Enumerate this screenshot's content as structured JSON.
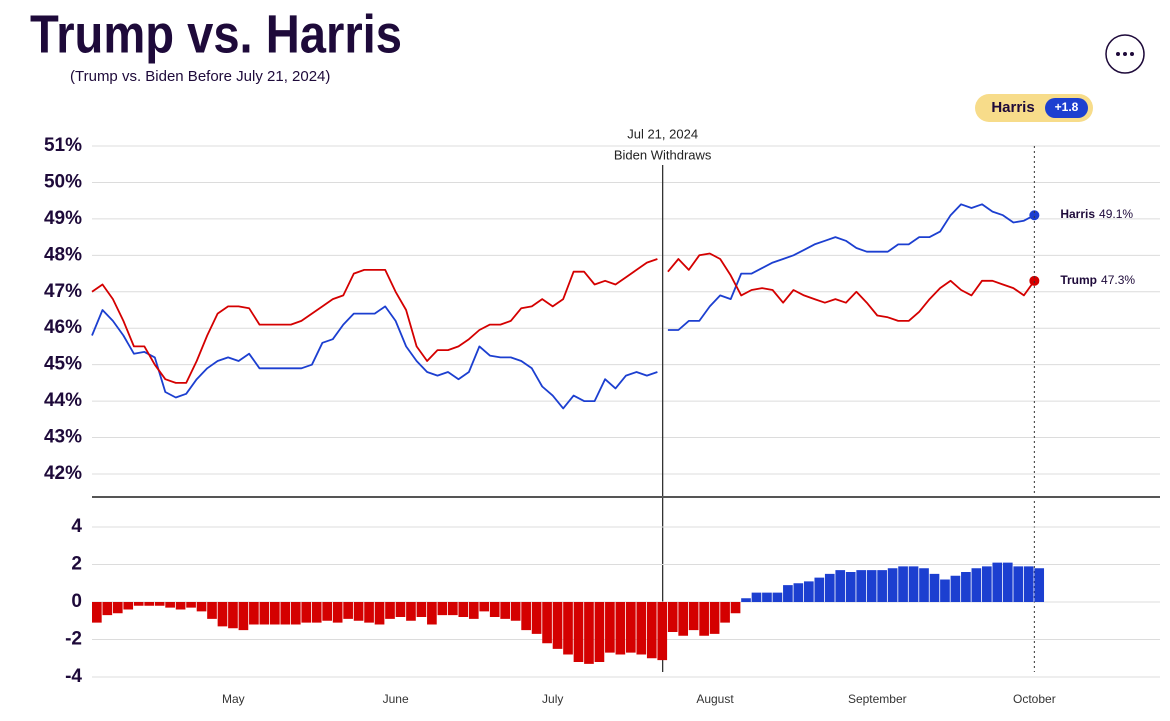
{
  "title": "Trump vs. Harris",
  "subtitle": "(Trump vs. Biden Before July 21, 2024)",
  "badge": {
    "leader": "Harris",
    "margin": "+1.8"
  },
  "chart_data": [
    {
      "type": "line",
      "x": [
        0,
        2,
        4,
        6,
        8,
        10,
        12,
        14,
        16,
        18,
        20,
        22,
        24,
        26,
        28,
        30,
        32,
        34,
        36,
        38,
        40,
        42,
        44,
        46,
        48,
        50,
        52,
        54,
        56,
        58,
        60,
        62,
        64,
        66,
        68,
        70,
        72,
        74,
        76,
        78,
        80,
        82,
        84,
        86,
        88,
        90,
        92,
        94,
        96,
        98,
        100,
        102,
        104,
        106,
        108,
        109,
        110,
        112,
        114,
        116,
        118,
        120,
        122,
        124,
        126,
        128,
        130,
        132,
        134,
        136,
        138,
        140,
        142,
        144,
        146,
        148,
        150,
        152,
        154,
        156,
        158,
        160,
        162,
        164,
        166,
        168,
        170,
        172,
        174,
        176,
        178,
        180
      ],
      "xlim": [
        0,
        204
      ],
      "xticks": [
        {
          "value": 27,
          "label": "May"
        },
        {
          "value": 58,
          "label": "June"
        },
        {
          "value": 88,
          "label": "July"
        },
        {
          "value": 119,
          "label": "August"
        },
        {
          "value": 150,
          "label": "September"
        },
        {
          "value": 180,
          "label": "October"
        }
      ],
      "ylim": [
        42,
        51
      ],
      "yticks": [
        {
          "value": 42,
          "label": "42%"
        },
        {
          "value": 43,
          "label": "43%"
        },
        {
          "value": 44,
          "label": "44%"
        },
        {
          "value": 45,
          "label": "45%"
        },
        {
          "value": 46,
          "label": "46%"
        },
        {
          "value": 47,
          "label": "47%"
        },
        {
          "value": 48,
          "label": "48%"
        },
        {
          "value": 49,
          "label": "49%"
        },
        {
          "value": 50,
          "label": "50%"
        },
        {
          "value": 51,
          "label": "51%"
        }
      ],
      "grid": true,
      "annotation": {
        "x": 109,
        "lines": [
          "Jul 21, 2024",
          "Biden Withdraws"
        ]
      },
      "series": [
        {
          "name": "Harris",
          "color": "#1c3fd0",
          "end_label": "49.1%",
          "values": [
            45.8,
            46.5,
            46.2,
            45.8,
            45.3,
            45.35,
            45.2,
            44.25,
            44.1,
            44.2,
            44.6,
            44.9,
            45.1,
            45.2,
            45.1,
            45.3,
            44.9,
            44.9,
            44.9,
            44.9,
            44.9,
            45.0,
            45.6,
            45.7,
            46.1,
            46.4,
            46.4,
            46.4,
            46.6,
            46.2,
            45.5,
            45.1,
            44.8,
            44.7,
            44.8,
            44.6,
            44.8,
            45.5,
            45.25,
            45.2,
            45.2,
            45.1,
            44.9,
            44.4,
            44.15,
            43.8,
            44.15,
            44.0,
            44.0,
            44.6,
            44.35,
            44.7,
            44.8,
            44.7,
            44.8,
            null,
            45.95,
            45.95,
            46.2,
            46.2,
            46.6,
            46.9,
            46.8,
            47.5,
            47.5,
            47.65,
            47.8,
            47.9,
            48.0,
            48.15,
            48.3,
            48.4,
            48.5,
            48.4,
            48.2,
            48.1,
            48.1,
            48.1,
            48.3,
            48.3,
            48.5,
            48.5,
            48.65,
            49.1,
            49.4,
            49.3,
            49.4,
            49.2,
            49.1,
            48.9,
            48.95,
            49.1
          ]
        },
        {
          "name": "Trump",
          "color": "#d40000",
          "end_label": "47.3%",
          "values": [
            47.0,
            47.2,
            46.8,
            46.2,
            45.5,
            45.5,
            45.0,
            44.6,
            44.5,
            44.5,
            45.1,
            45.8,
            46.4,
            46.6,
            46.6,
            46.55,
            46.1,
            46.1,
            46.1,
            46.1,
            46.2,
            46.4,
            46.6,
            46.8,
            46.9,
            47.5,
            47.6,
            47.6,
            47.6,
            47.0,
            46.5,
            45.5,
            45.1,
            45.4,
            45.4,
            45.5,
            45.7,
            45.95,
            46.1,
            46.1,
            46.2,
            46.55,
            46.6,
            46.8,
            46.6,
            46.8,
            47.55,
            47.55,
            47.2,
            47.3,
            47.2,
            47.4,
            47.6,
            47.8,
            47.9,
            null,
            47.55,
            47.9,
            47.6,
            48.0,
            48.05,
            47.9,
            47.45,
            46.9,
            47.05,
            47.1,
            47.05,
            46.7,
            47.05,
            46.9,
            46.8,
            46.7,
            46.8,
            46.7,
            47.0,
            46.7,
            46.35,
            46.3,
            46.2,
            46.2,
            46.45,
            46.8,
            47.1,
            47.3,
            47.05,
            46.9,
            47.3,
            47.3,
            47.2,
            47.1,
            46.9,
            47.3
          ]
        }
      ]
    },
    {
      "type": "bar",
      "x": [
        0,
        2,
        4,
        6,
        8,
        10,
        12,
        14,
        16,
        18,
        20,
        22,
        24,
        26,
        28,
        30,
        32,
        34,
        36,
        38,
        40,
        42,
        44,
        46,
        48,
        50,
        52,
        54,
        56,
        58,
        60,
        62,
        64,
        66,
        68,
        70,
        72,
        74,
        76,
        78,
        80,
        82,
        84,
        86,
        88,
        90,
        92,
        94,
        96,
        98,
        100,
        102,
        104,
        106,
        108,
        109,
        110,
        112,
        114,
        116,
        118,
        120,
        122,
        124,
        126,
        128,
        130,
        132,
        134,
        136,
        138,
        140,
        142,
        144,
        146,
        148,
        150,
        152,
        154,
        156,
        158,
        160,
        162,
        164,
        166,
        168,
        170,
        172,
        174,
        176,
        178,
        180
      ],
      "xlim": [
        0,
        204
      ],
      "ylim": [
        -4,
        4
      ],
      "yticks": [
        -4,
        -2,
        0,
        2,
        4
      ],
      "grid": true,
      "positive_color": "#1c3fd0",
      "negative_color": "#d40000",
      "values": [
        -1.1,
        -0.7,
        -0.6,
        -0.4,
        -0.2,
        -0.2,
        -0.2,
        -0.3,
        -0.4,
        -0.3,
        -0.5,
        -0.9,
        -1.3,
        -1.4,
        -1.5,
        -1.2,
        -1.2,
        -1.2,
        -1.2,
        -1.2,
        -1.1,
        -1.1,
        -1.0,
        -1.1,
        -0.9,
        -1.0,
        -1.1,
        -1.2,
        -0.9,
        -0.8,
        -1.0,
        -0.8,
        -1.2,
        -0.7,
        -0.7,
        -0.8,
        -0.9,
        -0.5,
        -0.8,
        -0.9,
        -1.0,
        -1.5,
        -1.7,
        -2.2,
        -2.5,
        -2.8,
        -3.2,
        -3.3,
        -3.2,
        -2.7,
        -2.8,
        -2.7,
        -2.8,
        -3.0,
        -3.1,
        null,
        -1.6,
        -1.8,
        -1.5,
        -1.8,
        -1.7,
        -1.1,
        -0.6,
        0.2,
        0.5,
        0.5,
        0.5,
        0.9,
        1.0,
        1.1,
        1.3,
        1.5,
        1.7,
        1.6,
        1.7,
        1.7,
        1.7,
        1.8,
        1.9,
        1.9,
        1.8,
        1.5,
        1.2,
        1.4,
        1.6,
        1.8,
        1.9,
        2.1,
        2.1,
        1.9,
        1.9,
        1.8
      ]
    }
  ]
}
